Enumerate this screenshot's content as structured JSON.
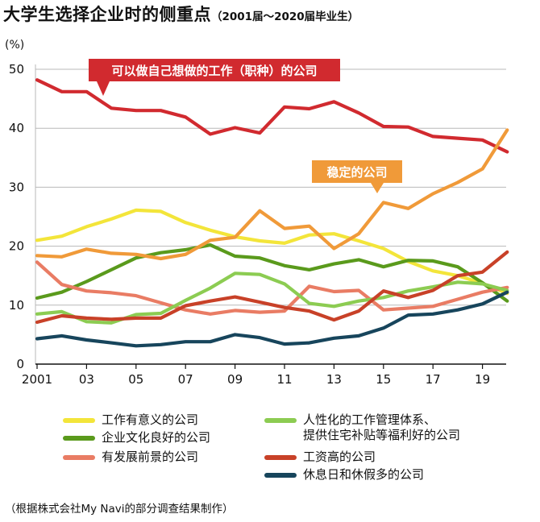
{
  "page": {
    "title": "大学生选择企业时的侧重点",
    "subtitle": "（2001届～2020届毕业生）",
    "unit": "(%)",
    "source": "（根据株式会社My Navi的部分调查结果制作）"
  },
  "chart_data": {
    "type": "line",
    "years": [
      2001,
      2002,
      2003,
      2004,
      2005,
      2006,
      2007,
      2008,
      2009,
      2010,
      2011,
      2012,
      2013,
      2014,
      2015,
      2016,
      2017,
      2018,
      2019,
      2020
    ],
    "x_tick_labels": [
      "2001",
      "03",
      "05",
      "07",
      "09",
      "11",
      "13",
      "15",
      "17",
      "19"
    ],
    "x_tick_years": [
      2001,
      2003,
      2005,
      2007,
      2009,
      2011,
      2013,
      2015,
      2017,
      2019
    ],
    "y_ticks": [
      0,
      10,
      20,
      30,
      40,
      50
    ],
    "ylim": [
      0,
      50
    ],
    "grid": true,
    "series": [
      {
        "name": "工作有意义的公司",
        "color": "#f3e53a",
        "values": [
          21.0,
          21.7,
          23.3,
          24.6,
          26.1,
          25.9,
          24.0,
          22.7,
          21.6,
          20.9,
          20.5,
          21.9,
          22.1,
          20.9,
          19.6,
          17.4,
          15.8,
          15.0,
          13.7,
          12.0
        ]
      },
      {
        "name": "企业文化良好的公司",
        "color": "#5a9a1c",
        "values": [
          11.2,
          12.2,
          14.0,
          16.0,
          18.0,
          18.9,
          19.4,
          20.2,
          18.3,
          18.0,
          16.7,
          16.0,
          17.0,
          17.7,
          16.5,
          17.6,
          17.5,
          16.5,
          13.8,
          10.7
        ]
      },
      {
        "name": "有发展前景的公司",
        "color": "#e97c64",
        "values": [
          17.3,
          13.5,
          12.4,
          12.1,
          11.6,
          10.4,
          9.2,
          8.5,
          9.1,
          8.8,
          9.0,
          13.2,
          12.3,
          12.5,
          9.2,
          9.5,
          9.8,
          11.0,
          12.2,
          13.0
        ]
      },
      {
        "name": "人性化的工作管理体系、提供住宅补贴等福利好的公司",
        "color": "#8ccc52",
        "values": [
          8.5,
          8.9,
          7.2,
          7.0,
          8.4,
          8.6,
          10.8,
          12.9,
          15.4,
          15.2,
          13.6,
          10.3,
          9.8,
          10.7,
          11.3,
          12.4,
          13.1,
          13.9,
          13.6,
          12.5
        ]
      },
      {
        "name": "工资高的公司",
        "color": "#c84128",
        "values": [
          7.1,
          8.2,
          7.8,
          7.6,
          7.8,
          7.8,
          9.9,
          10.7,
          11.4,
          10.5,
          9.6,
          9.0,
          7.5,
          9.0,
          12.4,
          11.3,
          12.5,
          15.0,
          15.6,
          19.0
        ]
      },
      {
        "name": "休息日和休假多的公司",
        "color": "#17455c",
        "values": [
          4.3,
          4.8,
          4.1,
          3.6,
          3.1,
          3.3,
          3.8,
          3.8,
          5.0,
          4.5,
          3.4,
          3.6,
          4.4,
          4.8,
          6.1,
          8.3,
          8.5,
          9.2,
          10.2,
          12.2
        ]
      },
      {
        "name": "可以做自己想做的工作（职种）的公司",
        "color": "#d12a2f",
        "values": [
          48.2,
          46.2,
          46.2,
          43.4,
          43.0,
          43.0,
          41.9,
          39.0,
          40.1,
          39.2,
          43.6,
          43.3,
          44.5,
          42.6,
          40.3,
          40.2,
          38.6,
          38.3,
          38.0,
          36.0
        ]
      },
      {
        "name": "稳定的公司",
        "color": "#f09a39",
        "values": [
          18.4,
          18.2,
          19.5,
          18.8,
          18.6,
          17.9,
          18.6,
          21.0,
          21.5,
          26.0,
          23.0,
          23.4,
          19.6,
          22.1,
          27.4,
          26.4,
          28.9,
          30.8,
          33.1,
          39.7
        ]
      }
    ],
    "callouts": [
      {
        "text": "可以做自己想做的工作（职种）的公司",
        "series": 6
      },
      {
        "text": "稳定的公司",
        "series": 7
      }
    ],
    "legend": [
      {
        "label": "工作有意义的公司",
        "color": "#f3e53a"
      },
      {
        "label": "人性化的工作管理体系、\n提供住宅补贴等福利好的公司",
        "color": "#8ccc52"
      },
      {
        "label": "企业文化良好的公司",
        "color": "#5a9a1c"
      },
      {
        "label": "工资高的公司",
        "color": "#c84128"
      },
      {
        "label": "有发展前景的公司",
        "color": "#e97c64"
      },
      {
        "label": "休息日和休假多的公司",
        "color": "#17455c"
      }
    ]
  }
}
